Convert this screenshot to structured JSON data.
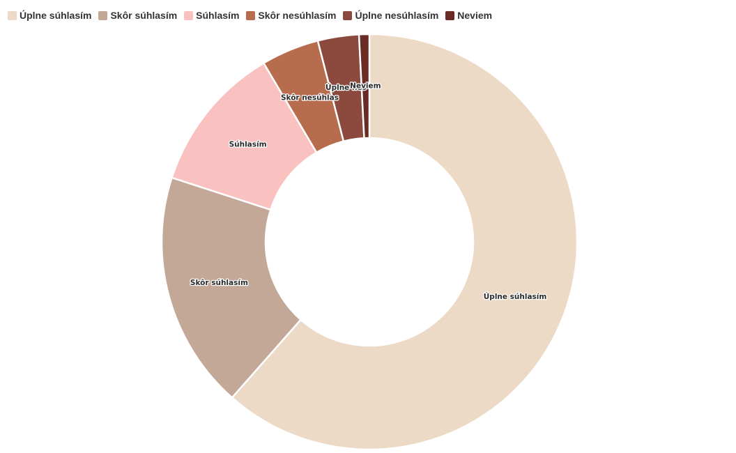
{
  "chart_data": {
    "type": "pie",
    "variant": "donut",
    "legend_position": "top-left",
    "categories": [
      "Úplne súhlasím",
      "Skôr súhlasím",
      "Súhlasím",
      "Skôr nesúhlasím",
      "Úplne nesúhlasím",
      "Neviem"
    ],
    "values": [
      61.5,
      18.5,
      11.5,
      4.5,
      3.2,
      0.8
    ],
    "colors": [
      "#ecd9c6",
      "#c3a898",
      "#f9c2c1",
      "#b86c4e",
      "#8c4a3e",
      "#6a2b24"
    ],
    "slice_labels": [
      "Úplne súhlasím",
      "Skôr súhlasím",
      "Súhlasím",
      "Skôr nesúhlas",
      "Úplne nes",
      "Neviem"
    ]
  }
}
